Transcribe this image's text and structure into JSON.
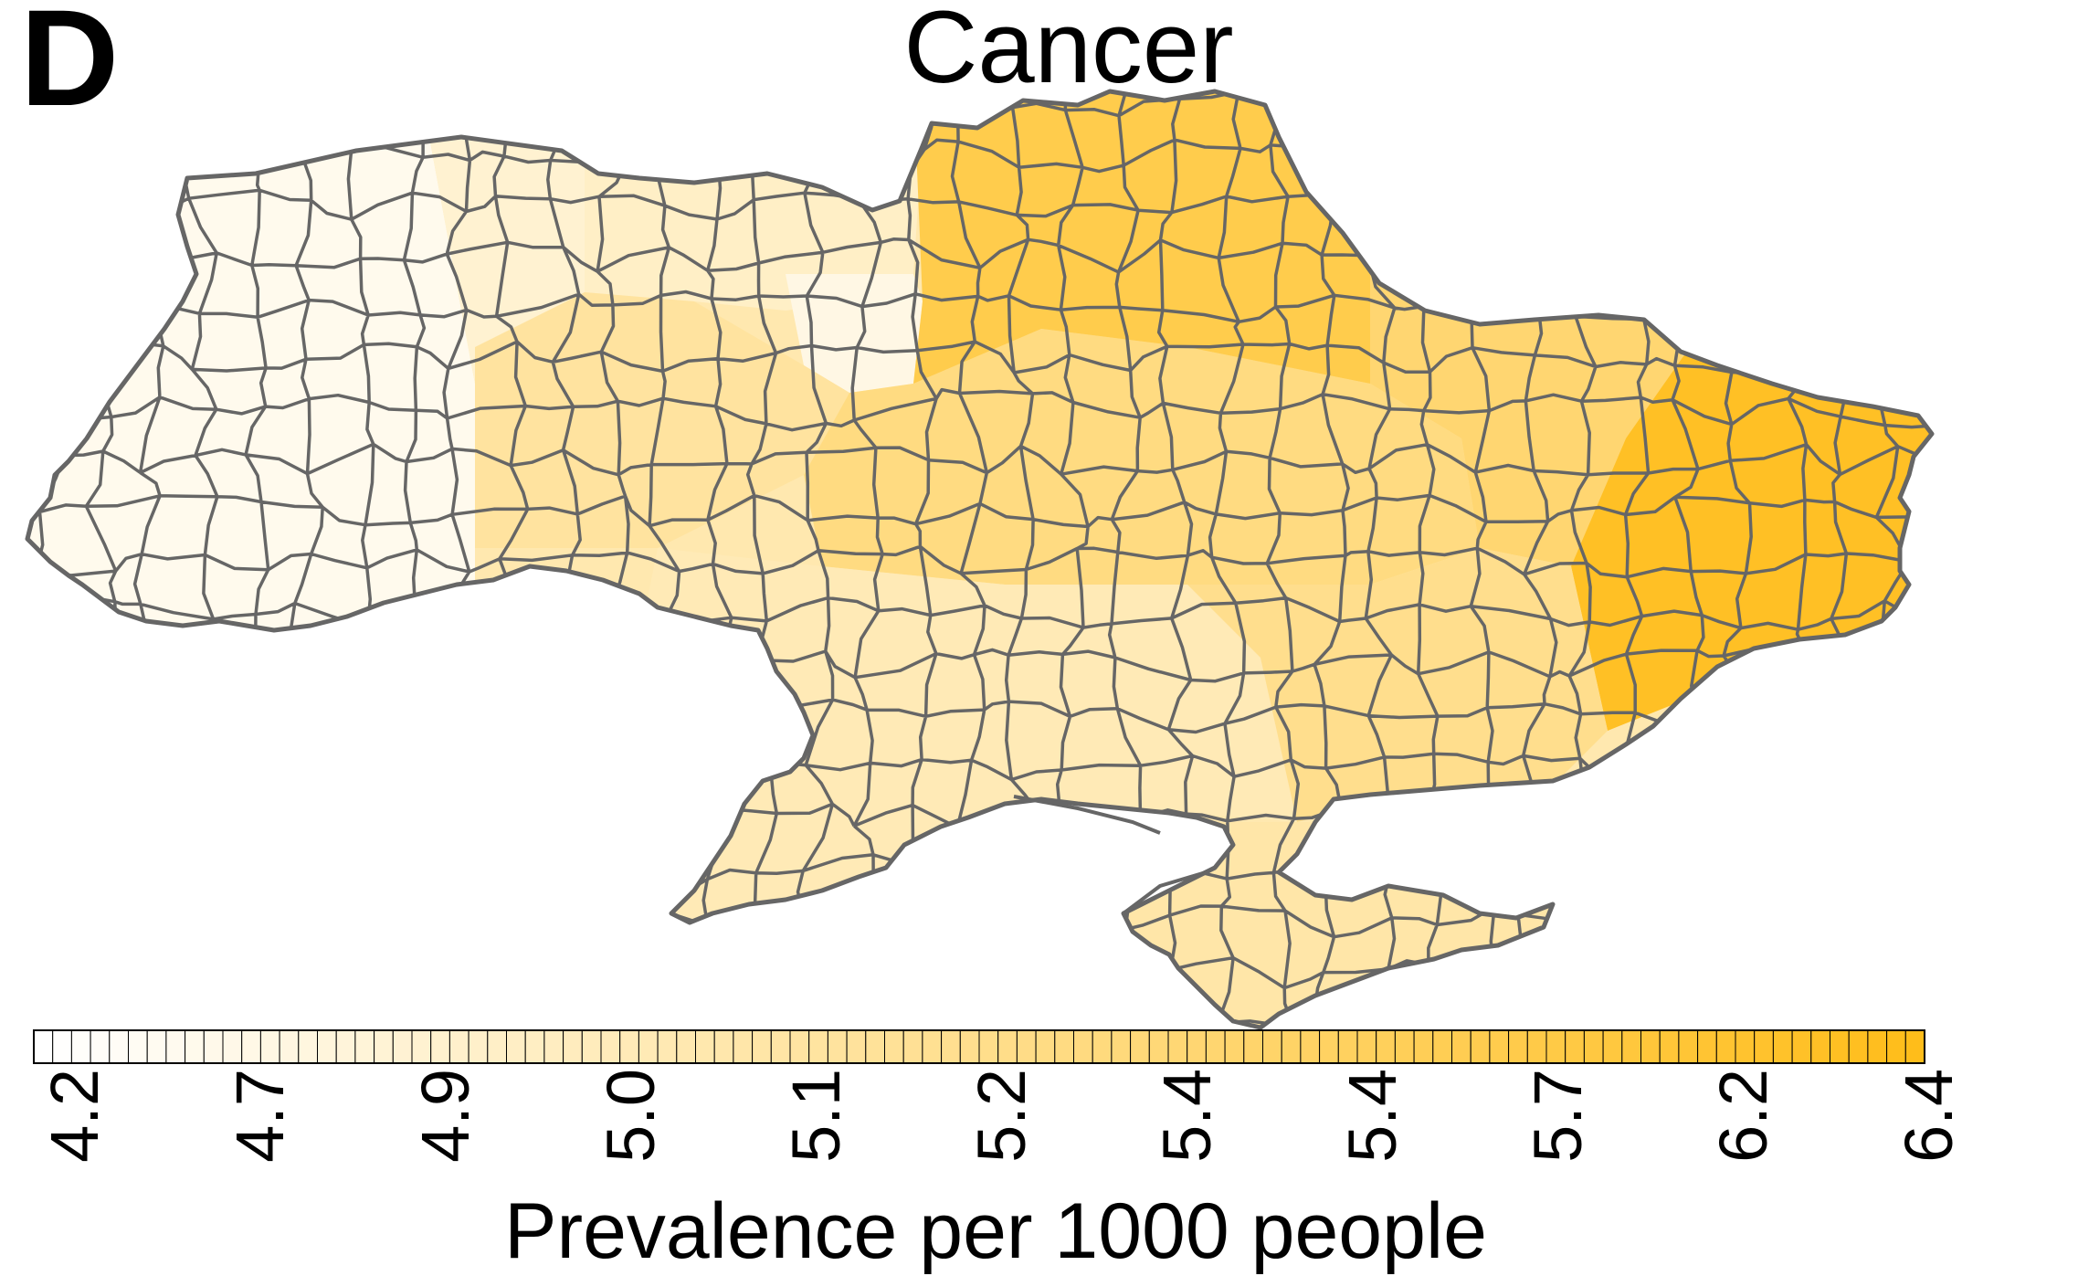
{
  "panel": {
    "letter": "D",
    "title": "Cancer"
  },
  "map": {
    "region": "Ukraine",
    "unit_level": "districts",
    "border_color": "#666666",
    "palette": {
      "low": "#ffffff",
      "high": "#ffbd1a"
    },
    "zones": [
      {
        "name": "west",
        "level": 0.08
      },
      {
        "name": "north-west",
        "level": 0.2
      },
      {
        "name": "north-central",
        "level": 0.25
      },
      {
        "name": "kyiv-area",
        "level": 0.12
      },
      {
        "name": "west-central",
        "level": 0.42
      },
      {
        "name": "central",
        "level": 0.55
      },
      {
        "name": "north-east",
        "level": 0.78
      },
      {
        "name": "east",
        "level": 0.62
      },
      {
        "name": "far-east",
        "level": 0.95
      },
      {
        "name": "south",
        "level": 0.32
      },
      {
        "name": "south-east",
        "level": 0.5
      },
      {
        "name": "crimea",
        "level": 0.38
      }
    ]
  },
  "legend": {
    "title": "Prevalence per 1000 people",
    "cell_count": 100,
    "ticks": [
      "4.2",
      "4.7",
      "4.9",
      "5.0",
      "5.1",
      "5.2",
      "5.4",
      "5.4",
      "5.7",
      "6.2",
      "6.4"
    ],
    "first_tick_prefix": "≤",
    "color_low": "#ffffff",
    "color_high": "#ffbd1a"
  }
}
